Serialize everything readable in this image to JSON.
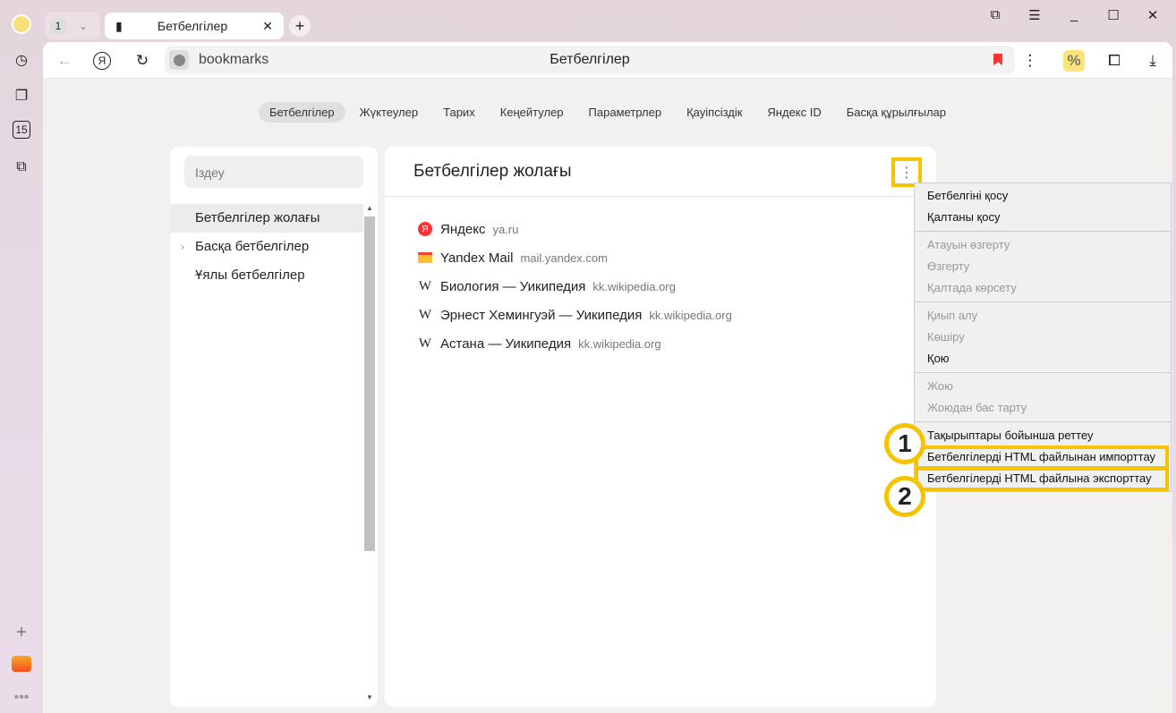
{
  "tabs": {
    "count": "1",
    "active_title": "Бетбелгілер"
  },
  "omnibox": {
    "url": "bookmarks",
    "title": "Бетбелгілер"
  },
  "sidebar_icons": [
    "avatar",
    "history-icon",
    "collections-icon",
    "calendar-icon",
    "screenshot-icon",
    "add-icon",
    "mail-icon",
    "more-icon"
  ],
  "calendar_day": "15",
  "nav": [
    "Бетбелгілер",
    "Жүктеулер",
    "Тарих",
    "Кеңейтулер",
    "Параметрлер",
    "Қауіпсіздік",
    "Яндекс ID",
    "Басқа құрылғылар"
  ],
  "search": {
    "placeholder": "Іздеу"
  },
  "tree": [
    "Бетбелгілер жолағы",
    "Басқа бетбелгілер",
    "Ұялы бетбелгілер"
  ],
  "main": {
    "title": "Бетбелгілер жолағы",
    "bookmarks": [
      {
        "title": "Яндекс",
        "url": "ya.ru",
        "icon": "yandex-icon"
      },
      {
        "title": "Yandex Mail",
        "url": "mail.yandex.com",
        "icon": "mail-icon"
      },
      {
        "title": "Биология — Уикипедия",
        "url": "kk.wikipedia.org",
        "icon": "wikipedia-icon"
      },
      {
        "title": "Эрнест Хемингуэй — Уикипедия",
        "url": "kk.wikipedia.org",
        "icon": "wikipedia-icon"
      },
      {
        "title": "Астана — Уикипедия",
        "url": "kk.wikipedia.org",
        "icon": "wikipedia-icon"
      }
    ]
  },
  "menu": {
    "items": [
      "Бетбелгіні қосу",
      "Қалтаны қосу",
      "Атауын өзгерту",
      "Өзгерту",
      "Қалтада көрсету",
      "Қиып алу",
      "Көшіру",
      "Қою",
      "Жою",
      "Жоюдан бас тарту",
      "Тақырыптары бойынша реттеу",
      "Бетбелгілерді HTML файлынан импорттау",
      "Бетбелгілерді HTML файлына экспорттау"
    ]
  },
  "annotations": [
    "1",
    "2"
  ],
  "colors": {
    "highlight": "#f5c400",
    "bookmark_flag": "#ff3333"
  }
}
